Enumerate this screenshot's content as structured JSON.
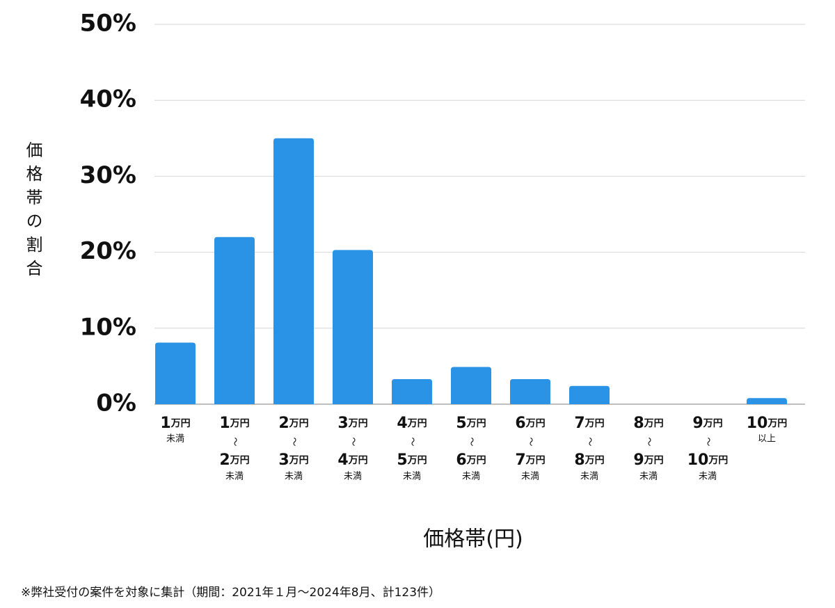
{
  "chart_data": {
    "type": "bar",
    "y_label": "価格帯の割合",
    "x_label": "価格帯(円)",
    "footnote": "※弊社受付の案件を対象に集計（期間：2021年１月～2024年8月、計123件）",
    "categories": [
      [
        "1万円",
        "未満"
      ],
      [
        "1万円",
        "〜",
        "2万円",
        "未満"
      ],
      [
        "2万円",
        "〜",
        "3万円",
        "未満"
      ],
      [
        "3万円",
        "〜",
        "4万円",
        "未満"
      ],
      [
        "4万円",
        "〜",
        "5万円",
        "未満"
      ],
      [
        "5万円",
        "〜",
        "6万円",
        "未満"
      ],
      [
        "6万円",
        "〜",
        "7万円",
        "未満"
      ],
      [
        "7万円",
        "〜",
        "8万円",
        "未満"
      ],
      [
        "8万円",
        "〜",
        "9万円",
        "未満"
      ],
      [
        "9万円",
        "〜",
        "10万円",
        "未満"
      ],
      [
        "10万円",
        "以上"
      ]
    ],
    "values": [
      8.1,
      22,
      35,
      20.3,
      3.3,
      4.9,
      3.3,
      2.4,
      0,
      0,
      0.8
    ],
    "color": "#2b93e6",
    "ylim": [
      0,
      50
    ],
    "yticks": [
      {
        "value": 0,
        "label": "0%"
      },
      {
        "value": 10,
        "label": "10%"
      },
      {
        "value": 20,
        "label": "20%"
      },
      {
        "value": 30,
        "label": "30%"
      },
      {
        "value": 40,
        "label": "40%"
      },
      {
        "value": 50,
        "label": "50%"
      }
    ],
    "grid": true
  }
}
